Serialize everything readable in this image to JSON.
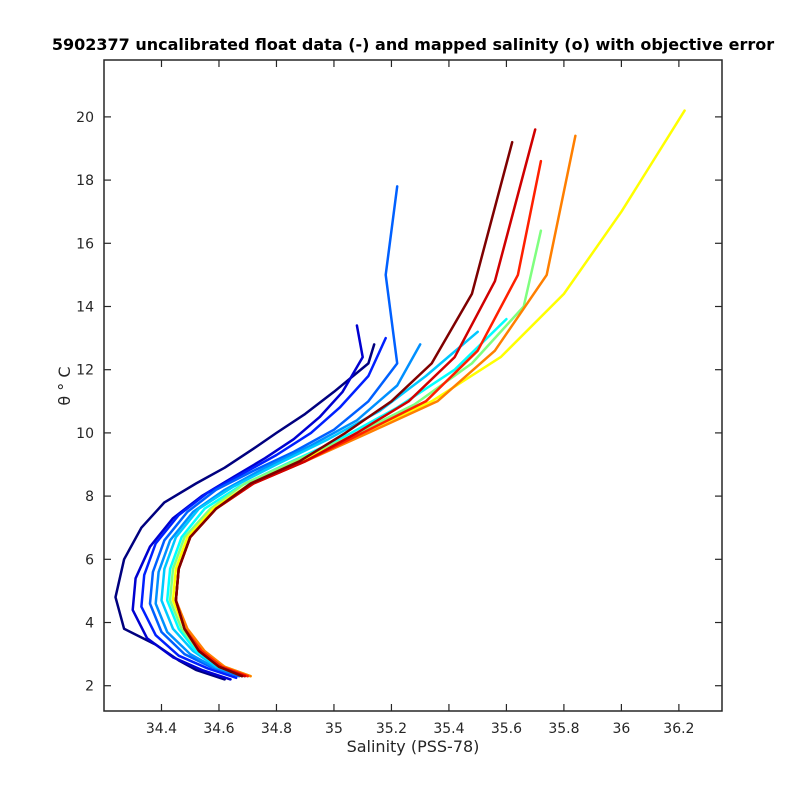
{
  "chart_data": {
    "type": "line",
    "title": "5902377 uncalibrated float data (-) and mapped salinity (o) with objective error",
    "xlabel": "Salinity (PSS-78)",
    "ylabel": "θ ° C",
    "xlim": [
      34.2,
      36.35
    ],
    "ylim": [
      1.2,
      21.8
    ],
    "xticks": [
      "34.4",
      "34.6",
      "34.8",
      "35",
      "35.2",
      "35.4",
      "35.6",
      "35.8",
      "36",
      "36.2"
    ],
    "xtick_values": [
      34.4,
      34.6,
      34.8,
      35.0,
      35.2,
      35.4,
      35.6,
      35.8,
      36.0,
      36.2
    ],
    "yticks": [
      "2",
      "4",
      "6",
      "8",
      "10",
      "12",
      "14",
      "16",
      "18",
      "20"
    ],
    "ytick_values": [
      2,
      4,
      6,
      8,
      10,
      12,
      14,
      16,
      18,
      20
    ],
    "grid": false,
    "colormap": "jet",
    "colormap_stops": [
      "#00007f",
      "#0000ff",
      "#007fff",
      "#00ffff",
      "#7fff7f",
      "#ffff00",
      "#ff7f00",
      "#ff0000",
      "#7f0000"
    ],
    "series": [
      {
        "color": "#00007f",
        "x": [
          34.62,
          34.52,
          34.46,
          34.38,
          34.27,
          34.24,
          34.27,
          34.33,
          34.41,
          34.52,
          34.62,
          34.72,
          34.8,
          34.9,
          35.0,
          35.12,
          35.14
        ],
        "y": [
          2.2,
          2.5,
          2.8,
          3.3,
          3.8,
          4.8,
          6.0,
          7.0,
          7.8,
          8.4,
          8.9,
          9.5,
          10.0,
          10.6,
          11.3,
          12.2,
          12.8
        ]
      },
      {
        "color": "#0000d0",
        "x": [
          34.64,
          34.54,
          34.44,
          34.35,
          34.3,
          34.31,
          34.36,
          34.44,
          34.54,
          34.65,
          34.76,
          34.86,
          34.95,
          35.03,
          35.1,
          35.08
        ],
        "y": [
          2.2,
          2.5,
          2.9,
          3.5,
          4.4,
          5.4,
          6.4,
          7.3,
          8.0,
          8.6,
          9.2,
          9.8,
          10.5,
          11.3,
          12.4,
          13.4
        ]
      },
      {
        "color": "#0020ff",
        "x": [
          34.66,
          34.56,
          34.46,
          34.38,
          34.33,
          34.34,
          34.38,
          34.46,
          34.56,
          34.68,
          34.8,
          34.92,
          35.02,
          35.12,
          35.18
        ],
        "y": [
          2.25,
          2.55,
          2.95,
          3.6,
          4.5,
          5.5,
          6.5,
          7.4,
          8.1,
          8.7,
          9.3,
          10.0,
          10.8,
          11.8,
          13.0
        ]
      },
      {
        "color": "#0060ff",
        "x": [
          34.67,
          34.57,
          34.48,
          34.4,
          34.36,
          34.37,
          34.41,
          34.49,
          34.59,
          34.72,
          34.86,
          35.0,
          35.12,
          35.22,
          35.18,
          35.22
        ],
        "y": [
          2.3,
          2.6,
          3.0,
          3.7,
          4.6,
          5.6,
          6.6,
          7.5,
          8.2,
          8.8,
          9.4,
          10.1,
          11.0,
          12.2,
          15.0,
          17.8
        ]
      },
      {
        "color": "#0090ff",
        "x": [
          34.68,
          34.58,
          34.5,
          34.42,
          34.38,
          34.39,
          34.43,
          34.51,
          34.62,
          34.76,
          34.92,
          35.08,
          35.22,
          35.3
        ],
        "y": [
          2.3,
          2.6,
          3.0,
          3.7,
          4.6,
          5.6,
          6.6,
          7.5,
          8.2,
          8.9,
          9.6,
          10.4,
          11.5,
          12.8
        ]
      },
      {
        "color": "#00c8ff",
        "x": [
          34.69,
          34.59,
          34.51,
          34.44,
          34.4,
          34.41,
          34.45,
          34.53,
          34.65,
          34.8,
          34.98,
          35.16,
          35.32,
          35.5
        ],
        "y": [
          2.3,
          2.6,
          3.1,
          3.8,
          4.7,
          5.7,
          6.7,
          7.6,
          8.3,
          9.0,
          9.8,
          10.7,
          11.8,
          13.2
        ]
      },
      {
        "color": "#00ffff",
        "x": [
          34.7,
          34.6,
          34.52,
          34.46,
          34.42,
          34.43,
          34.47,
          34.55,
          34.67,
          34.83,
          35.02,
          35.22,
          35.42,
          35.6
        ],
        "y": [
          2.3,
          2.6,
          3.1,
          3.8,
          4.7,
          5.7,
          6.7,
          7.6,
          8.3,
          9.0,
          9.8,
          10.8,
          12.0,
          13.6
        ]
      },
      {
        "color": "#7fff7f",
        "x": [
          34.7,
          34.61,
          34.53,
          34.47,
          34.43,
          34.44,
          34.48,
          34.57,
          34.69,
          34.86,
          35.06,
          35.28,
          35.48,
          35.66,
          35.72
        ],
        "y": [
          2.3,
          2.6,
          3.1,
          3.8,
          4.7,
          5.7,
          6.7,
          7.6,
          8.4,
          9.1,
          9.9,
          10.9,
          12.2,
          14.0,
          16.4
        ]
      },
      {
        "color": "#ffff00",
        "x": [
          34.71,
          34.62,
          34.54,
          34.48,
          34.44,
          34.45,
          34.49,
          34.58,
          34.71,
          34.88,
          35.1,
          35.34,
          35.58,
          35.8,
          36.0,
          36.22
        ],
        "y": [
          2.3,
          2.6,
          3.1,
          3.8,
          4.7,
          5.7,
          6.7,
          7.6,
          8.4,
          9.1,
          10.0,
          11.0,
          12.4,
          14.4,
          17.0,
          20.2
        ]
      },
      {
        "color": "#ff7f00",
        "x": [
          34.71,
          34.62,
          34.55,
          34.49,
          34.45,
          34.46,
          34.5,
          34.59,
          34.72,
          34.9,
          35.12,
          35.36,
          35.56,
          35.74,
          35.84
        ],
        "y": [
          2.3,
          2.6,
          3.1,
          3.8,
          4.7,
          5.7,
          6.7,
          7.6,
          8.4,
          9.1,
          10.0,
          11.0,
          12.6,
          15.0,
          19.4
        ]
      },
      {
        "color": "#ff2000",
        "x": [
          34.7,
          34.61,
          34.54,
          34.48,
          34.45,
          34.46,
          34.5,
          34.59,
          34.72,
          34.9,
          35.1,
          35.32,
          35.5,
          35.64,
          35.72
        ],
        "y": [
          2.3,
          2.6,
          3.1,
          3.8,
          4.7,
          5.7,
          6.7,
          7.6,
          8.4,
          9.1,
          10.0,
          11.0,
          12.6,
          15.0,
          18.6
        ]
      },
      {
        "color": "#d00000",
        "x": [
          34.69,
          34.6,
          34.53,
          34.48,
          34.45,
          34.46,
          34.5,
          34.59,
          34.72,
          34.9,
          35.08,
          35.26,
          35.42,
          35.56,
          35.7
        ],
        "y": [
          2.3,
          2.6,
          3.1,
          3.8,
          4.7,
          5.7,
          6.7,
          7.6,
          8.4,
          9.1,
          10.0,
          11.0,
          12.4,
          14.8,
          19.6
        ]
      },
      {
        "color": "#7f0000",
        "x": [
          34.68,
          34.6,
          34.53,
          34.48,
          34.45,
          34.46,
          34.5,
          34.59,
          34.71,
          34.88,
          35.04,
          35.2,
          35.34,
          35.48,
          35.62
        ],
        "y": [
          2.3,
          2.6,
          3.1,
          3.8,
          4.7,
          5.7,
          6.7,
          7.6,
          8.4,
          9.1,
          10.0,
          11.0,
          12.2,
          14.4,
          19.2
        ]
      }
    ]
  }
}
